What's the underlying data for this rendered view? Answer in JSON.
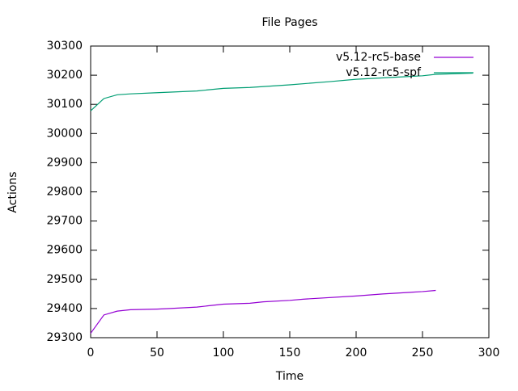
{
  "chart_data": {
    "type": "line",
    "title": "File Pages",
    "x_label": "Time",
    "y_label": "Actions",
    "xlim": [
      0,
      300
    ],
    "xticks": [
      0,
      50,
      100,
      150,
      200,
      250,
      300
    ],
    "ylim": [
      29300,
      30300
    ],
    "yticks": [
      29300,
      29400,
      29500,
      29600,
      29700,
      29800,
      29900,
      30000,
      30100,
      30200,
      30300
    ],
    "legend": "top-right",
    "grid": false,
    "series": [
      {
        "name": "v5.12-rc5-base",
        "color": "#9400d3",
        "x": [
          0,
          10,
          20,
          30,
          50,
          60,
          80,
          100,
          120,
          130,
          150,
          160,
          200,
          220,
          250,
          260
        ],
        "values": [
          29315,
          29378,
          29391,
          29396,
          29398,
          29400,
          29405,
          29415,
          29418,
          29423,
          29428,
          29432,
          29443,
          29450,
          29458,
          29462
        ]
      },
      {
        "name": "v5.12-rc5-spf",
        "color": "#009e73",
        "x": [
          0,
          10,
          20,
          30,
          50,
          80,
          100,
          120,
          150,
          180,
          200,
          250,
          260,
          288
        ],
        "values": [
          30078,
          30120,
          30133,
          30136,
          30140,
          30146,
          30155,
          30158,
          30167,
          30178,
          30186,
          30198,
          30203,
          30207
        ]
      }
    ]
  }
}
